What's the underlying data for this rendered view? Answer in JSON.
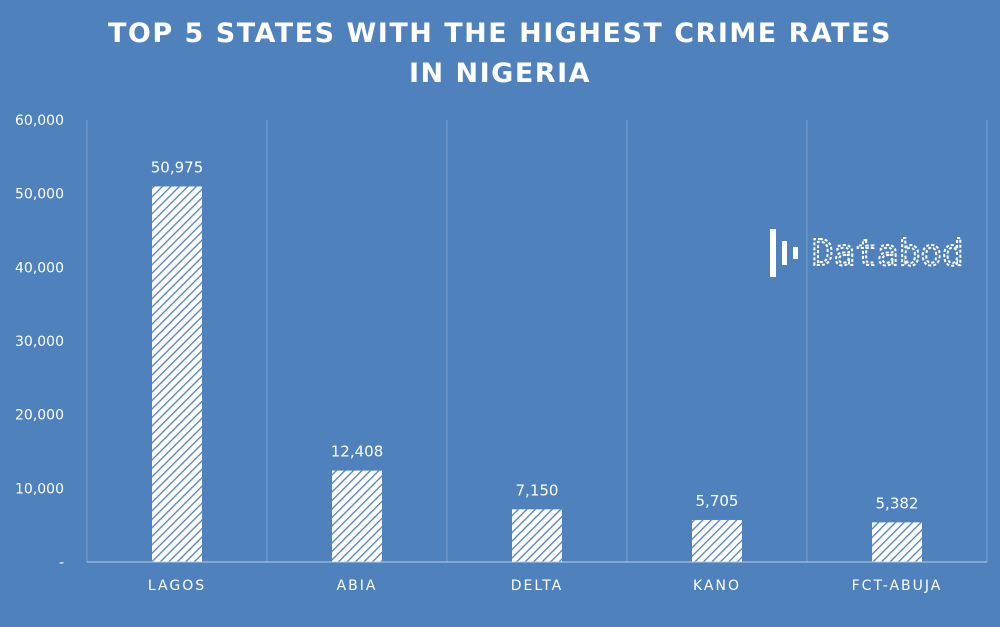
{
  "chart_data": {
    "type": "bar",
    "title": "TOP 5 STATES WITH THE HIGHEST CRIME RATES IN NIGERIA",
    "categories": [
      "LAGOS",
      "ABIA",
      "DELTA",
      "KANO",
      "FCT-ABUJA"
    ],
    "values": [
      50975,
      12408,
      7150,
      5705,
      5382
    ],
    "data_labels": [
      "50,975",
      "12,408",
      "7,150",
      "5,705",
      "5,382"
    ],
    "y_ticks": [
      0,
      10000,
      20000,
      30000,
      40000,
      50000,
      60000
    ],
    "y_tick_labels": [
      "-",
      "10,000",
      "20,000",
      "30,000",
      "40,000",
      "50,000",
      "60,000"
    ],
    "ylim": [
      0,
      60000
    ],
    "xlabel": "",
    "ylabel": "",
    "grid": "vertical category dividers",
    "bar_fill": "white diagonal hatch",
    "background": "#4f81bd",
    "legend": "none"
  },
  "watermark": {
    "text": "Databod"
  }
}
